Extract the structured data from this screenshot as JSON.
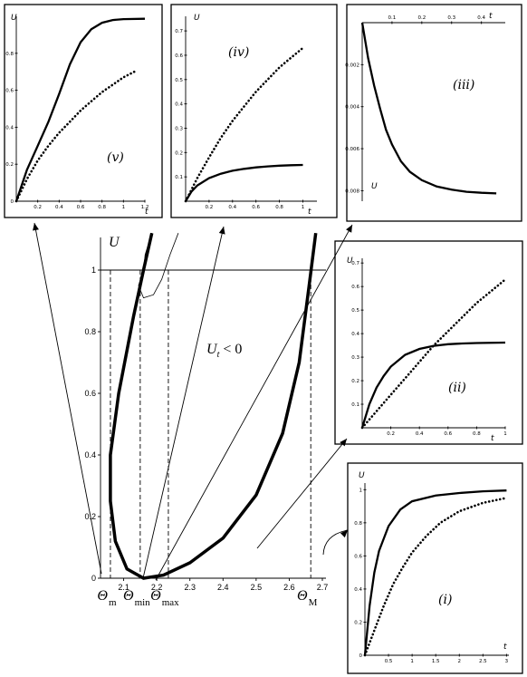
{
  "chart_data": [
    {
      "id": "main",
      "type": "line",
      "ylabel": "U",
      "region_label": "U_t < 0",
      "xlim": [
        2.0,
        2.72
      ],
      "ylim": [
        0,
        1.12
      ],
      "x_ticks": [
        "2.1",
        "2.2",
        "2.3",
        "2.4",
        "2.5",
        "2.6",
        "2.7"
      ],
      "y_ticks": [
        "0",
        "0.2",
        "0.4",
        "0.6",
        "0.8",
        "1"
      ],
      "hline": 1.0,
      "markers": [
        {
          "label": "Θ",
          "sub": "m",
          "x": 2.06
        },
        {
          "label": "Θ",
          "sub": "min",
          "x": 2.15
        },
        {
          "label": "Θ",
          "sub": "max",
          "x": 2.235
        },
        {
          "label": "Θ",
          "sub": "M",
          "x": 2.665
        }
      ],
      "series": [
        {
          "style": "thick",
          "points": [
            [
              2.185,
              1.12
            ],
            [
              2.16,
              1.0
            ],
            [
              2.13,
              0.85
            ],
            [
              2.085,
              0.6
            ],
            [
              2.06,
              0.4
            ],
            [
              2.06,
              0.25
            ],
            [
              2.075,
              0.12
            ],
            [
              2.11,
              0.03
            ],
            [
              2.16,
              0.0
            ],
            [
              2.22,
              0.01
            ],
            [
              2.3,
              0.05
            ],
            [
              2.4,
              0.13
            ],
            [
              2.5,
              0.27
            ],
            [
              2.58,
              0.47
            ],
            [
              2.63,
              0.7
            ],
            [
              2.66,
              0.95
            ],
            [
              2.68,
              1.12
            ]
          ]
        },
        {
          "style": "thin",
          "points": [
            [
              2.16,
              1.0
            ],
            [
              2.145,
              0.95
            ],
            [
              2.16,
              0.91
            ],
            [
              2.19,
              0.92
            ],
            [
              2.215,
              0.97
            ],
            [
              2.24,
              1.05
            ],
            [
              2.265,
              1.12
            ]
          ]
        },
        {
          "style": "thin",
          "points": [
            [
              2.16,
              1.0
            ],
            [
              2.165,
              1.05
            ],
            [
              2.185,
              1.12
            ]
          ]
        }
      ]
    },
    {
      "id": "v",
      "label": "(v)",
      "type": "line",
      "xlabel": "t",
      "ylabel": "U",
      "xlim": [
        0,
        1.2
      ],
      "ylim": [
        0,
        1.0
      ],
      "x_ticks": [
        "0.2",
        "0.4",
        "0.6",
        "0.8",
        "1",
        "1.2"
      ],
      "y_ticks": [
        "0",
        "0.2",
        "0.4",
        "0.6",
        "0.8"
      ],
      "series": [
        {
          "style": "solid",
          "points": [
            [
              0,
              0
            ],
            [
              0.1,
              0.17
            ],
            [
              0.2,
              0.3
            ],
            [
              0.3,
              0.43
            ],
            [
              0.4,
              0.58
            ],
            [
              0.5,
              0.74
            ],
            [
              0.6,
              0.86
            ],
            [
              0.7,
              0.93
            ],
            [
              0.8,
              0.965
            ],
            [
              0.9,
              0.98
            ],
            [
              1.0,
              0.985
            ],
            [
              1.2,
              0.987
            ]
          ]
        },
        {
          "style": "dotted",
          "points": [
            [
              0,
              0
            ],
            [
              0.1,
              0.12
            ],
            [
              0.2,
              0.22
            ],
            [
              0.3,
              0.3
            ],
            [
              0.4,
              0.37
            ],
            [
              0.5,
              0.43
            ],
            [
              0.6,
              0.49
            ],
            [
              0.7,
              0.54
            ],
            [
              0.8,
              0.59
            ],
            [
              0.9,
              0.63
            ],
            [
              1.0,
              0.67
            ],
            [
              1.1,
              0.7
            ]
          ]
        }
      ]
    },
    {
      "id": "iv",
      "label": "(iv)",
      "type": "line",
      "xlabel": "t",
      "ylabel": "U",
      "xlim": [
        0,
        1.12
      ],
      "ylim": [
        0,
        0.76
      ],
      "x_ticks": [
        "0.2",
        "0.4",
        "0.6",
        "0.8",
        "1"
      ],
      "y_ticks": [
        "0.1",
        "0.2",
        "0.3",
        "0.4",
        "0.5",
        "0.6",
        "0.7"
      ],
      "series": [
        {
          "style": "solid",
          "points": [
            [
              0,
              0
            ],
            [
              0.05,
              0.04
            ],
            [
              0.1,
              0.065
            ],
            [
              0.2,
              0.095
            ],
            [
              0.3,
              0.113
            ],
            [
              0.4,
              0.125
            ],
            [
              0.5,
              0.133
            ],
            [
              0.6,
              0.139
            ],
            [
              0.7,
              0.143
            ],
            [
              0.8,
              0.146
            ],
            [
              0.9,
              0.148
            ],
            [
              1.0,
              0.149
            ]
          ]
        },
        {
          "style": "dotted",
          "points": [
            [
              0,
              0
            ],
            [
              0.1,
              0.095
            ],
            [
              0.2,
              0.18
            ],
            [
              0.3,
              0.26
            ],
            [
              0.4,
              0.33
            ],
            [
              0.5,
              0.39
            ],
            [
              0.6,
              0.45
            ],
            [
              0.7,
              0.5
            ],
            [
              0.8,
              0.55
            ],
            [
              0.9,
              0.59
            ],
            [
              1.0,
              0.63
            ]
          ]
        }
      ]
    },
    {
      "id": "iii",
      "label": "(iii)",
      "type": "line",
      "xlabel": "t",
      "ylabel": "U",
      "xlim": [
        0,
        0.48
      ],
      "ylim": [
        0,
        0.0085
      ],
      "x_ticks": [
        "0.1",
        "0.2",
        "0.3",
        "0.4"
      ],
      "y_ticks": [
        "0.002",
        "0.004",
        "0.006",
        "0.008"
      ],
      "series": [
        {
          "style": "solid",
          "points": [
            [
              0,
              0
            ],
            [
              0.02,
              0.0017
            ],
            [
              0.04,
              0.003
            ],
            [
              0.06,
              0.0041
            ],
            [
              0.08,
              0.0051
            ],
            [
              0.1,
              0.0058
            ],
            [
              0.13,
              0.0066
            ],
            [
              0.16,
              0.0071
            ],
            [
              0.2,
              0.0075
            ],
            [
              0.25,
              0.0078
            ],
            [
              0.3,
              0.00795
            ],
            [
              0.35,
              0.00805
            ],
            [
              0.4,
              0.0081
            ],
            [
              0.45,
              0.00813
            ]
          ]
        }
      ]
    },
    {
      "id": "ii",
      "label": "(ii)",
      "type": "line",
      "xlabel": "t",
      "ylabel": "U",
      "xlim": [
        0,
        1.0
      ],
      "ylim": [
        0,
        0.72
      ],
      "x_ticks": [
        "0.2",
        "0.4",
        "0.6",
        "0.8",
        "1"
      ],
      "y_ticks": [
        "0.1",
        "0.2",
        "0.3",
        "0.4",
        "0.5",
        "0.6",
        "0.7"
      ],
      "series": [
        {
          "style": "solid",
          "points": [
            [
              0,
              0
            ],
            [
              0.05,
              0.1
            ],
            [
              0.1,
              0.17
            ],
            [
              0.15,
              0.22
            ],
            [
              0.2,
              0.26
            ],
            [
              0.3,
              0.31
            ],
            [
              0.4,
              0.335
            ],
            [
              0.5,
              0.348
            ],
            [
              0.6,
              0.355
            ],
            [
              0.7,
              0.358
            ],
            [
              0.8,
              0.36
            ],
            [
              1.0,
              0.362
            ]
          ]
        },
        {
          "style": "dotted",
          "points": [
            [
              0,
              0
            ],
            [
              0.1,
              0.07
            ],
            [
              0.2,
              0.14
            ],
            [
              0.3,
              0.21
            ],
            [
              0.4,
              0.28
            ],
            [
              0.5,
              0.35
            ],
            [
              0.6,
              0.41
            ],
            [
              0.7,
              0.47
            ],
            [
              0.8,
              0.53
            ],
            [
              0.9,
              0.58
            ],
            [
              1.0,
              0.63
            ]
          ]
        }
      ]
    },
    {
      "id": "i",
      "label": "(i)",
      "type": "line",
      "xlabel": "t",
      "ylabel": "U",
      "xlim": [
        0,
        3.05
      ],
      "ylim": [
        0,
        1.04
      ],
      "x_ticks": [
        "0.5",
        "1",
        "1.5",
        "2",
        "2.5",
        "3"
      ],
      "y_ticks": [
        "0",
        "0.2",
        "0.4",
        "0.6",
        "0.8",
        "1"
      ],
      "series": [
        {
          "style": "solid",
          "points": [
            [
              0,
              0
            ],
            [
              0.1,
              0.3
            ],
            [
              0.2,
              0.5
            ],
            [
              0.3,
              0.63
            ],
            [
              0.5,
              0.78
            ],
            [
              0.75,
              0.88
            ],
            [
              1.0,
              0.93
            ],
            [
              1.5,
              0.965
            ],
            [
              2.0,
              0.98
            ],
            [
              2.5,
              0.99
            ],
            [
              3.0,
              0.995
            ]
          ]
        },
        {
          "style": "dotted",
          "points": [
            [
              0,
              0
            ],
            [
              0.2,
              0.15
            ],
            [
              0.4,
              0.3
            ],
            [
              0.6,
              0.43
            ],
            [
              0.8,
              0.53
            ],
            [
              1.0,
              0.62
            ],
            [
              1.3,
              0.72
            ],
            [
              1.6,
              0.8
            ],
            [
              2.0,
              0.87
            ],
            [
              2.5,
              0.92
            ],
            [
              3.0,
              0.95
            ]
          ]
        }
      ]
    }
  ]
}
